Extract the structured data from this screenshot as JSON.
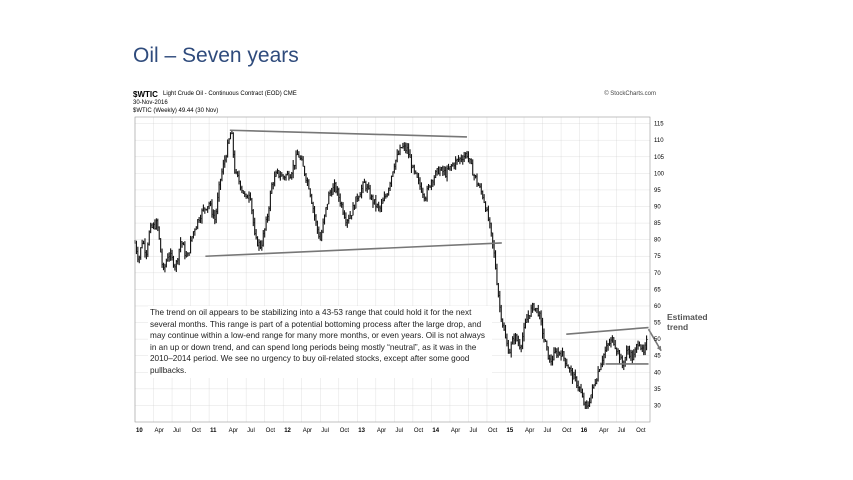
{
  "slide": {
    "title": "Oil – Seven years"
  },
  "chart_header": {
    "symbol": "$WTIC",
    "description": "Light Crude Oil - Continuous Contract (EOD)",
    "exchange": "CME",
    "date": "30-Nov-2016",
    "series_label": "$WTIC (Weekly) 49.44 (30 Nov)",
    "copyright": "© StockCharts.com"
  },
  "annotation_text": "The trend on oil appears to be stabilizing into a 43-53 range that could hold it for the next several months. This range is part of a potential bottoming process after the large drop, and may continue within a low-end range for many more months, or even years. Oil is not always in an up or down trend, and can spend long periods being mostly “neutral”, as it was in the 2010–2014 period. We see no urgency to buy oil-related stocks, except after some good pullbacks.",
  "estimated_trend_label": "Estimated\ntrend",
  "colors": {
    "bars": "#111111",
    "trendlines": "#777777",
    "title": "#2f4b7c",
    "grid": "#cccccc"
  },
  "chart_data": {
    "type": "line",
    "title": "$WTIC Light Crude Oil - Continuous Contract (EOD)",
    "x_unit": "year",
    "ylim": [
      25,
      117
    ],
    "y_ticks": [
      30,
      35,
      40,
      45,
      50,
      55,
      60,
      65,
      70,
      75,
      80,
      85,
      90,
      95,
      100,
      105,
      110,
      115
    ],
    "grid": true,
    "x_ticks": [
      {
        "label": "10",
        "t": 2010.0,
        "year": true
      },
      {
        "label": "Apr",
        "t": 2010.25
      },
      {
        "label": "Jul",
        "t": 2010.5
      },
      {
        "label": "Oct",
        "t": 2010.75
      },
      {
        "label": "11",
        "t": 2011.0,
        "year": true
      },
      {
        "label": "Apr",
        "t": 2011.25
      },
      {
        "label": "Jul",
        "t": 2011.5
      },
      {
        "label": "Oct",
        "t": 2011.75
      },
      {
        "label": "12",
        "t": 2012.0,
        "year": true
      },
      {
        "label": "Apr",
        "t": 2012.25
      },
      {
        "label": "Jul",
        "t": 2012.5
      },
      {
        "label": "Oct",
        "t": 2012.75
      },
      {
        "label": "13",
        "t": 2013.0,
        "year": true
      },
      {
        "label": "Apr",
        "t": 2013.25
      },
      {
        "label": "Jul",
        "t": 2013.5
      },
      {
        "label": "Oct",
        "t": 2013.75
      },
      {
        "label": "14",
        "t": 2014.0,
        "year": true
      },
      {
        "label": "Apr",
        "t": 2014.25
      },
      {
        "label": "Jul",
        "t": 2014.5
      },
      {
        "label": "Oct",
        "t": 2014.75
      },
      {
        "label": "15",
        "t": 2015.0,
        "year": true
      },
      {
        "label": "Apr",
        "t": 2015.25
      },
      {
        "label": "Jul",
        "t": 2015.5
      },
      {
        "label": "Oct",
        "t": 2015.75
      },
      {
        "label": "16",
        "t": 2016.0,
        "year": true
      },
      {
        "label": "Apr",
        "t": 2016.25
      },
      {
        "label": "Jul",
        "t": 2016.5
      },
      {
        "label": "Oct",
        "t": 2016.75
      }
    ],
    "xlim": [
      2010.0,
      2016.95
    ],
    "series": [
      {
        "points": [
          [
            2010.0,
            79
          ],
          [
            2010.05,
            74
          ],
          [
            2010.1,
            80
          ],
          [
            2010.15,
            76
          ],
          [
            2010.2,
            83
          ],
          [
            2010.3,
            85
          ],
          [
            2010.38,
            70
          ],
          [
            2010.45,
            76
          ],
          [
            2010.55,
            72
          ],
          [
            2010.62,
            80
          ],
          [
            2010.7,
            74
          ],
          [
            2010.78,
            82
          ],
          [
            2010.85,
            86
          ],
          [
            2010.92,
            89
          ],
          [
            2011.0,
            91
          ],
          [
            2011.08,
            86
          ],
          [
            2011.15,
            98
          ],
          [
            2011.25,
            108
          ],
          [
            2011.3,
            113
          ],
          [
            2011.35,
            100
          ],
          [
            2011.4,
            98
          ],
          [
            2011.5,
            92
          ],
          [
            2011.55,
            95
          ],
          [
            2011.62,
            80
          ],
          [
            2011.7,
            78
          ],
          [
            2011.78,
            86
          ],
          [
            2011.85,
            97
          ],
          [
            2011.92,
            100
          ],
          [
            2012.0,
            99
          ],
          [
            2012.1,
            100
          ],
          [
            2012.2,
            106
          ],
          [
            2012.25,
            103
          ],
          [
            2012.35,
            96
          ],
          [
            2012.45,
            84
          ],
          [
            2012.5,
            80
          ],
          [
            2012.55,
            86
          ],
          [
            2012.62,
            94
          ],
          [
            2012.7,
            96
          ],
          [
            2012.78,
            91
          ],
          [
            2012.85,
            86
          ],
          [
            2012.92,
            88
          ],
          [
            2013.0,
            93
          ],
          [
            2013.1,
            97
          ],
          [
            2013.2,
            92
          ],
          [
            2013.3,
            89
          ],
          [
            2013.4,
            94
          ],
          [
            2013.5,
            103
          ],
          [
            2013.6,
            108
          ],
          [
            2013.68,
            107
          ],
          [
            2013.75,
            101
          ],
          [
            2013.85,
            96
          ],
          [
            2013.92,
            93
          ],
          [
            2014.0,
            98
          ],
          [
            2014.1,
            101
          ],
          [
            2014.2,
            100
          ],
          [
            2014.3,
            103
          ],
          [
            2014.42,
            105
          ],
          [
            2014.48,
            106
          ],
          [
            2014.55,
            101
          ],
          [
            2014.62,
            97
          ],
          [
            2014.7,
            93
          ],
          [
            2014.78,
            85
          ],
          [
            2014.85,
            75
          ],
          [
            2014.92,
            60
          ],
          [
            2015.0,
            50
          ],
          [
            2015.05,
            46
          ],
          [
            2015.12,
            51
          ],
          [
            2015.2,
            48
          ],
          [
            2015.3,
            57
          ],
          [
            2015.38,
            60
          ],
          [
            2015.45,
            58
          ],
          [
            2015.52,
            50
          ],
          [
            2015.6,
            43
          ],
          [
            2015.68,
            46
          ],
          [
            2015.75,
            46
          ],
          [
            2015.82,
            43
          ],
          [
            2015.9,
            39
          ],
          [
            2015.96,
            37
          ],
          [
            2016.0,
            35
          ],
          [
            2016.05,
            31
          ],
          [
            2016.1,
            29
          ],
          [
            2016.15,
            33
          ],
          [
            2016.22,
            38
          ],
          [
            2016.3,
            44
          ],
          [
            2016.38,
            48
          ],
          [
            2016.45,
            50
          ],
          [
            2016.52,
            46
          ],
          [
            2016.58,
            42
          ],
          [
            2016.65,
            47
          ],
          [
            2016.72,
            44
          ],
          [
            2016.8,
            50
          ],
          [
            2016.86,
            45
          ],
          [
            2016.91,
            49.44
          ]
        ]
      }
    ],
    "trendlines": [
      {
        "from": [
          2011.28,
          113
        ],
        "to": [
          2014.48,
          111
        ]
      },
      {
        "from": [
          2010.95,
          75
        ],
        "to": [
          2014.95,
          79
        ]
      },
      {
        "from": [
          2015.82,
          51.5
        ],
        "to": [
          2016.93,
          53.5
        ]
      },
      {
        "from": [
          2016.35,
          42.5
        ],
        "to": [
          2016.93,
          42.5
        ]
      }
    ],
    "estimated_trend_arrow": {
      "from": [
        2016.93,
        53
      ],
      "to": [
        2017.1,
        46.5
      ]
    }
  }
}
